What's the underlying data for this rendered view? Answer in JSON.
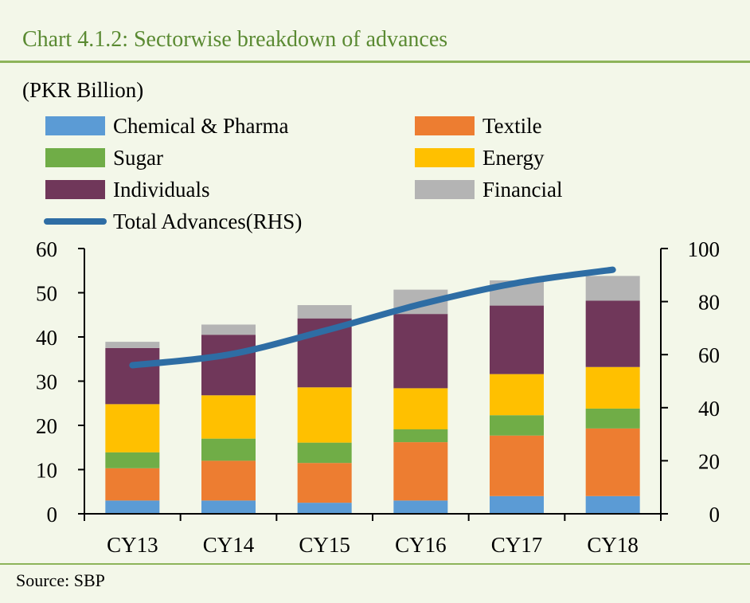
{
  "header": {
    "title": "Chart 4.1.2: Sectorwise breakdown of advances"
  },
  "footer": {
    "source": "Source:  SBP"
  },
  "chart_data": {
    "type": "bar",
    "stacked": true,
    "unit_label": "(PKR Billion)",
    "categories": [
      "CY13",
      "CY14",
      "CY15",
      "CY16",
      "CY17",
      "CY18"
    ],
    "series": [
      {
        "name": "Chemical & Pharma",
        "color": "#5b9bd5",
        "values": [
          3.0,
          3.0,
          2.5,
          3.0,
          4.0,
          4.0
        ]
      },
      {
        "name": "Textile",
        "color": "#ed7d31",
        "values": [
          7.3,
          9.0,
          9.0,
          13.2,
          13.7,
          15.3
        ]
      },
      {
        "name": "Sugar",
        "color": "#70ad47",
        "values": [
          3.6,
          5.0,
          4.6,
          2.9,
          4.6,
          4.5
        ]
      },
      {
        "name": "Energy",
        "color": "#ffc000",
        "values": [
          10.9,
          9.8,
          12.5,
          9.3,
          9.3,
          9.4
        ]
      },
      {
        "name": "Individuals",
        "color": "#70375a",
        "values": [
          12.7,
          13.7,
          15.6,
          16.8,
          15.5,
          15.0
        ]
      },
      {
        "name": "Financial",
        "color": "#b4b4b4",
        "values": [
          1.4,
          2.3,
          3.0,
          5.5,
          5.7,
          5.6
        ]
      }
    ],
    "line_series": {
      "name": "Total Advances(RHS)",
      "color": "#2e6da4",
      "axis": "right",
      "values": [
        56,
        60,
        69,
        79,
        87,
        92
      ]
    },
    "y_left": {
      "min": 0,
      "max": 60,
      "ticks": [
        0,
        10,
        20,
        30,
        40,
        50,
        60
      ]
    },
    "y_right": {
      "min": 0,
      "max": 100,
      "ticks": [
        0,
        20,
        40,
        60,
        80,
        100
      ]
    },
    "legend_position": "top",
    "grid": false
  }
}
